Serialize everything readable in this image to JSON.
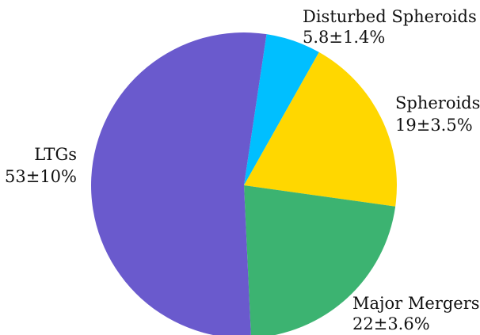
{
  "chart_data": {
    "type": "pie",
    "slices": [
      {
        "name": "Disturbed Spheroids",
        "value": 5.8,
        "label": "5.8±1.4%",
        "color": "#00BFFF"
      },
      {
        "name": "Spheroids",
        "value": 19,
        "label": "19±3.5%",
        "color": "#FFD700"
      },
      {
        "name": "Major Mergers",
        "value": 22,
        "label": "22±3.6%",
        "color": "#3CB371"
      },
      {
        "name": "LTGs",
        "value": 53,
        "label": "53±10%",
        "color": "#6A5ACD"
      }
    ]
  }
}
